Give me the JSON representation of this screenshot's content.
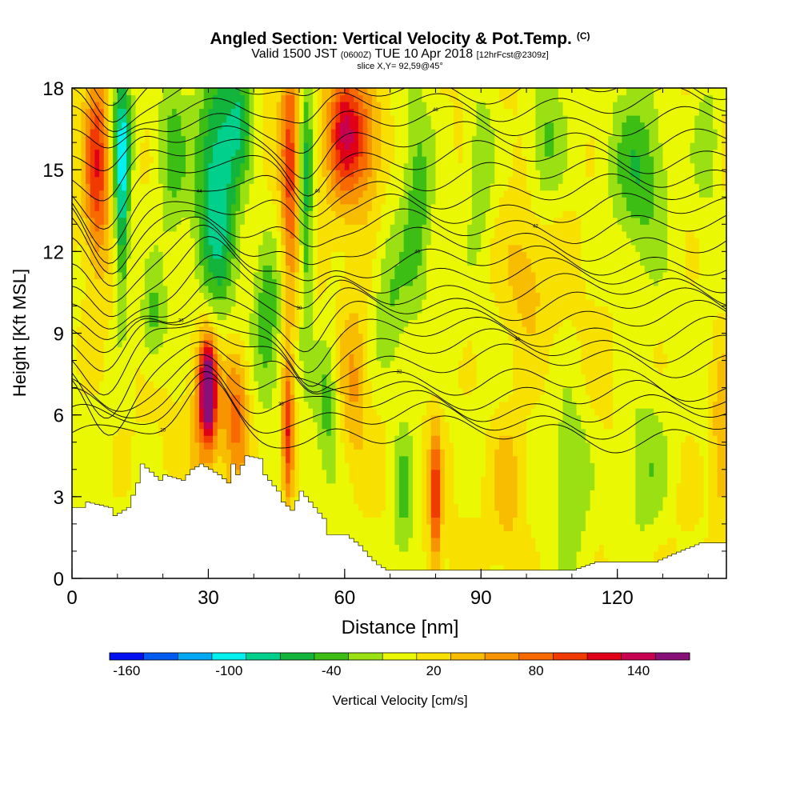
{
  "header": {
    "title": "Angled Section: Vertical Velocity & Pot.Temp.",
    "title_unit": "(C)",
    "subtitle_valid": "Valid 1500 JST",
    "subtitle_utc": "(0600Z)",
    "subtitle_date": "TUE 10 Apr 2018",
    "subtitle_fcst": "[12hrFcst@2309z]",
    "slice_info": "slice X,Y= 92,59@45°"
  },
  "chart_data": {
    "type": "heatmap",
    "xlabel": "Distance [nm]",
    "ylabel": "Height [Kft MSL]",
    "xlim": [
      0,
      144
    ],
    "ylim": [
      0,
      18
    ],
    "x_ticks": [
      0,
      30,
      60,
      90,
      120
    ],
    "y_ticks": [
      0,
      3,
      6,
      9,
      12,
      15,
      18
    ],
    "colorbar": {
      "label": "Vertical Velocity [cm/s]",
      "tick_values": [
        -160,
        -100,
        -40,
        20,
        80,
        140
      ],
      "bins": [
        -170,
        -150,
        -130,
        -110,
        -90,
        -70,
        -50,
        -30,
        -10,
        10,
        30,
        50,
        70,
        90,
        110,
        130,
        150,
        170
      ],
      "colors": [
        "#0010f0",
        "#005af0",
        "#00a8f4",
        "#00f0f0",
        "#00d08c",
        "#12b43c",
        "#3cbe14",
        "#9ae012",
        "#eaf804",
        "#f8e000",
        "#f8bc00",
        "#f89400",
        "#f86a00",
        "#f03a00",
        "#e00018",
        "#c80050",
        "#881078"
      ]
    },
    "terrain_profile": {
      "x": [
        0,
        2,
        3,
        8,
        9,
        12,
        14,
        15,
        19,
        20,
        24,
        26,
        28,
        31,
        32,
        34,
        35,
        36,
        38,
        41,
        42,
        45,
        46,
        48,
        50,
        55,
        56,
        58,
        60,
        63,
        64,
        65,
        67,
        69,
        70,
        80,
        110,
        115,
        120,
        128,
        132,
        138,
        144
      ],
      "y": [
        2.6,
        2.6,
        2.8,
        2.6,
        2.3,
        2.6,
        3.5,
        4.2,
        3.6,
        3.8,
        3.6,
        4.0,
        4.2,
        3.9,
        3.8,
        3.5,
        4.2,
        3.8,
        4.5,
        4.4,
        3.8,
        3.2,
        2.8,
        2.5,
        3.2,
        2.2,
        1.6,
        1.6,
        1.6,
        1.2,
        1.0,
        0.8,
        0.5,
        0.3,
        0.3,
        0.3,
        0.3,
        0.6,
        0.6,
        0.6,
        0.9,
        1.3,
        1.3
      ]
    },
    "wmax_cells": [
      {
        "x": 5.5,
        "y": 15.2,
        "sx": 2.6,
        "sy": 3.5,
        "w": 95
      },
      {
        "x": 11,
        "y": 13.5,
        "sx": 1.6,
        "sy": 3.8,
        "w": -85
      },
      {
        "x": 11,
        "y": 16.5,
        "sx": 2.2,
        "sy": 2.5,
        "w": -55
      },
      {
        "x": 22,
        "y": 15.5,
        "sx": 3,
        "sy": 3,
        "w": -40
      },
      {
        "x": 32,
        "y": 14.5,
        "sx": 4.5,
        "sy": 4.5,
        "w": -95
      },
      {
        "x": 37,
        "y": 17,
        "sx": 3,
        "sy": 2,
        "w": -60
      },
      {
        "x": 48,
        "y": 15,
        "sx": 2,
        "sy": 5,
        "w": 85
      },
      {
        "x": 51.5,
        "y": 14,
        "sx": 1.6,
        "sy": 5,
        "w": -70
      },
      {
        "x": 60,
        "y": 16.5,
        "sx": 4,
        "sy": 2.5,
        "w": 110
      },
      {
        "x": 65,
        "y": 16,
        "sx": 4,
        "sy": 2.5,
        "w": 55
      },
      {
        "x": 76,
        "y": 14,
        "sx": 3,
        "sy": 4,
        "w": -45
      },
      {
        "x": 90,
        "y": 15.5,
        "sx": 3,
        "sy": 3,
        "w": -40
      },
      {
        "x": 104,
        "y": 16,
        "sx": 4,
        "sy": 2.5,
        "w": -45
      },
      {
        "x": 125,
        "y": 15,
        "sx": 6,
        "sy": 3,
        "w": -50
      },
      {
        "x": 140,
        "y": 16,
        "sx": 3,
        "sy": 2.5,
        "w": -40
      },
      {
        "x": 30,
        "y": 7,
        "sx": 1.6,
        "sy": 1.6,
        "w": 165
      },
      {
        "x": 29.5,
        "y": 6.5,
        "sx": 2.8,
        "sy": 2.8,
        "w": 70
      },
      {
        "x": 36,
        "y": 6.2,
        "sx": 3,
        "sy": 2.5,
        "w": 75
      },
      {
        "x": 47.5,
        "y": 5.2,
        "sx": 1.3,
        "sy": 2.5,
        "w": 110
      },
      {
        "x": 56,
        "y": 6.5,
        "sx": 2.5,
        "sy": 2.5,
        "w": -45
      },
      {
        "x": 62,
        "y": 7,
        "sx": 3,
        "sy": 3,
        "w": 40
      },
      {
        "x": 73,
        "y": 3,
        "sx": 2.5,
        "sy": 3,
        "w": -45
      },
      {
        "x": 80,
        "y": 3,
        "sx": 1.2,
        "sy": 2.5,
        "w": 95
      },
      {
        "x": 96,
        "y": 3.5,
        "sx": 4,
        "sy": 3,
        "w": 35
      },
      {
        "x": 110,
        "y": 4,
        "sx": 4,
        "sy": 3,
        "w": -40
      },
      {
        "x": 126,
        "y": 4,
        "sx": 5,
        "sy": 3,
        "w": -40
      },
      {
        "x": 143,
        "y": 5,
        "sx": 2,
        "sy": 3,
        "w": 55
      },
      {
        "x": 18,
        "y": 9.5,
        "sx": 3,
        "sy": 2,
        "w": -50
      },
      {
        "x": 43,
        "y": 9.5,
        "sx": 3,
        "sy": 3,
        "w": -50
      },
      {
        "x": 70,
        "y": 10,
        "sx": 4,
        "sy": 3,
        "w": -40
      },
      {
        "x": 100,
        "y": 11,
        "sx": 5,
        "sy": 2.5,
        "w": 30
      }
    ],
    "theta_contours": {
      "levels": 26,
      "contour_labels": [
        "20",
        "30",
        "32",
        "34",
        "36",
        "38",
        "40",
        "42",
        "44",
        "46",
        "48",
        "50",
        "52",
        "54",
        "56",
        "58",
        "60",
        "62"
      ]
    }
  },
  "axes": {
    "x_tick_labels": [
      "0",
      "30",
      "60",
      "90",
      "120"
    ],
    "y_tick_labels": [
      "0",
      "3",
      "6",
      "9",
      "12",
      "15",
      "18"
    ],
    "colorbar_tick_labels": [
      "-160",
      "-100",
      "-40",
      "20",
      "80",
      "140"
    ]
  }
}
